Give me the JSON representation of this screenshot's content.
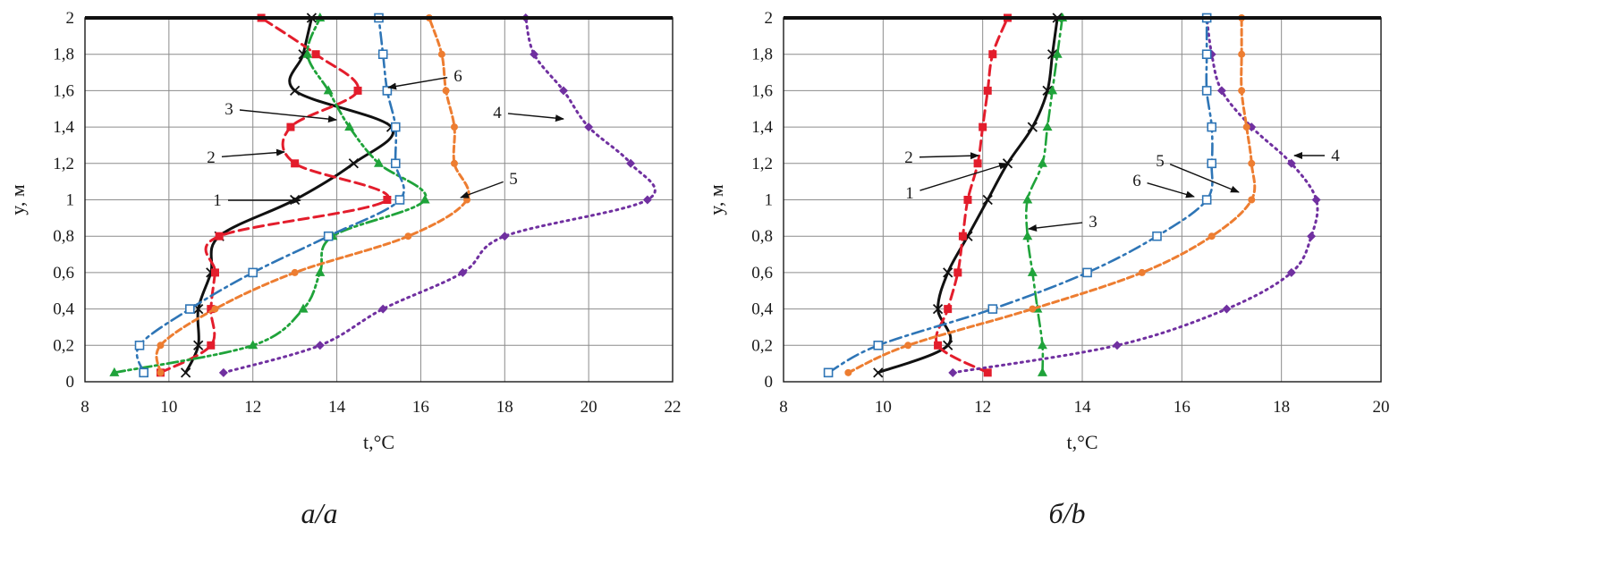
{
  "colors": {
    "1": "#111111",
    "2": "#e31d2c",
    "3": "#1fa33a",
    "4": "#7030a0",
    "5": "#ed7d31",
    "6": "#2e75b6"
  },
  "chart_data": [
    {
      "type": "line",
      "caption": "а/a",
      "xlabel": "t,°C",
      "ylabel": "y, м",
      "xlim": [
        8,
        22
      ],
      "ylim": [
        0,
        2
      ],
      "xticks": [
        "8",
        "10",
        "12",
        "14",
        "16",
        "18",
        "20",
        "22"
      ],
      "yticks": [
        "0",
        "0,2",
        "0,4",
        "0,6",
        "0,8",
        "1",
        "1,2",
        "1,4",
        "1,6",
        "1,8",
        "2"
      ],
      "grid": true,
      "series": [
        {
          "name": "1",
          "marker": "x",
          "dash": "solid",
          "points": [
            [
              10.4,
              0.05
            ],
            [
              10.7,
              0.2
            ],
            [
              10.7,
              0.4
            ],
            [
              11.0,
              0.6
            ],
            [
              11.2,
              0.8
            ],
            [
              13.0,
              1.0
            ],
            [
              14.4,
              1.2
            ],
            [
              15.3,
              1.4
            ],
            [
              13.0,
              1.6
            ],
            [
              13.2,
              1.8
            ],
            [
              13.4,
              2.0
            ]
          ]
        },
        {
          "name": "2",
          "marker": "square",
          "dash": "dash",
          "points": [
            [
              9.8,
              0.05
            ],
            [
              11.0,
              0.2
            ],
            [
              11.0,
              0.4
            ],
            [
              11.1,
              0.6
            ],
            [
              11.2,
              0.8
            ],
            [
              15.2,
              1.0
            ],
            [
              13.0,
              1.2
            ],
            [
              12.9,
              1.4
            ],
            [
              14.5,
              1.6
            ],
            [
              13.5,
              1.8
            ],
            [
              12.2,
              2.0
            ]
          ]
        },
        {
          "name": "3",
          "marker": "triangle",
          "dash": "dashdotdot",
          "points": [
            [
              8.7,
              0.05
            ],
            [
              12.0,
              0.2
            ],
            [
              13.2,
              0.4
            ],
            [
              13.6,
              0.6
            ],
            [
              13.9,
              0.8
            ],
            [
              16.1,
              1.0
            ],
            [
              15.0,
              1.2
            ],
            [
              14.3,
              1.4
            ],
            [
              13.8,
              1.6
            ],
            [
              13.3,
              1.8
            ],
            [
              13.6,
              2.0
            ]
          ]
        },
        {
          "name": "4",
          "marker": "diamond",
          "dash": "dot",
          "points": [
            [
              11.3,
              0.05
            ],
            [
              13.6,
              0.2
            ],
            [
              15.1,
              0.4
            ],
            [
              17.0,
              0.6
            ],
            [
              18.0,
              0.8
            ],
            [
              21.4,
              1.0
            ],
            [
              21.0,
              1.2
            ],
            [
              20.0,
              1.4
            ],
            [
              19.4,
              1.6
            ],
            [
              18.7,
              1.8
            ],
            [
              18.5,
              2.0
            ]
          ]
        },
        {
          "name": "5",
          "marker": "circle",
          "dash": "shortdash",
          "points": [
            [
              9.8,
              0.05
            ],
            [
              9.8,
              0.2
            ],
            [
              11.1,
              0.4
            ],
            [
              13.0,
              0.6
            ],
            [
              15.7,
              0.8
            ],
            [
              17.1,
              1.0
            ],
            [
              16.8,
              1.2
            ],
            [
              16.8,
              1.4
            ],
            [
              16.6,
              1.6
            ],
            [
              16.5,
              1.8
            ],
            [
              16.2,
              2.0
            ]
          ]
        },
        {
          "name": "6",
          "marker": "opensquare",
          "dash": "dashdot",
          "points": [
            [
              9.4,
              0.05
            ],
            [
              9.3,
              0.2
            ],
            [
              10.5,
              0.4
            ],
            [
              12.0,
              0.6
            ],
            [
              13.8,
              0.8
            ],
            [
              15.5,
              1.0
            ],
            [
              15.4,
              1.2
            ],
            [
              15.4,
              1.4
            ],
            [
              15.2,
              1.6
            ],
            [
              15.1,
              1.8
            ],
            [
              15.0,
              2.0
            ]
          ]
        }
      ],
      "annotations": [
        "1",
        "2",
        "3",
        "4",
        "5",
        "6"
      ]
    },
    {
      "type": "line",
      "caption": "б/b",
      "xlabel": "t,°C",
      "ylabel": "y, м",
      "xlim": [
        8,
        20
      ],
      "ylim": [
        0,
        2
      ],
      "xticks": [
        "8",
        "10",
        "12",
        "14",
        "16",
        "18",
        "20"
      ],
      "yticks": [
        "0",
        "0,2",
        "0,4",
        "0,6",
        "0,8",
        "1",
        "1,2",
        "1,4",
        "1,6",
        "1,8",
        "2"
      ],
      "grid": true,
      "series": [
        {
          "name": "1",
          "marker": "x",
          "dash": "solid",
          "points": [
            [
              9.9,
              0.05
            ],
            [
              11.3,
              0.2
            ],
            [
              11.1,
              0.4
            ],
            [
              11.3,
              0.6
            ],
            [
              11.7,
              0.8
            ],
            [
              12.1,
              1.0
            ],
            [
              12.5,
              1.2
            ],
            [
              13.0,
              1.4
            ],
            [
              13.3,
              1.6
            ],
            [
              13.4,
              1.8
            ],
            [
              13.5,
              2.0
            ]
          ]
        },
        {
          "name": "2",
          "marker": "square",
          "dash": "dash",
          "points": [
            [
              12.1,
              0.05
            ],
            [
              11.1,
              0.2
            ],
            [
              11.3,
              0.4
            ],
            [
              11.5,
              0.6
            ],
            [
              11.6,
              0.8
            ],
            [
              11.7,
              1.0
            ],
            [
              11.9,
              1.2
            ],
            [
              12.0,
              1.4
            ],
            [
              12.1,
              1.6
            ],
            [
              12.2,
              1.8
            ],
            [
              12.5,
              2.0
            ]
          ]
        },
        {
          "name": "3",
          "marker": "triangle",
          "dash": "dashdot",
          "points": [
            [
              13.2,
              0.05
            ],
            [
              13.2,
              0.2
            ],
            [
              13.1,
              0.4
            ],
            [
              13.0,
              0.6
            ],
            [
              12.9,
              0.8
            ],
            [
              12.9,
              1.0
            ],
            [
              13.2,
              1.2
            ],
            [
              13.3,
              1.4
            ],
            [
              13.4,
              1.6
            ],
            [
              13.5,
              1.8
            ],
            [
              13.6,
              2.0
            ]
          ]
        },
        {
          "name": "4",
          "marker": "diamond",
          "dash": "dot",
          "points": [
            [
              11.4,
              0.05
            ],
            [
              14.7,
              0.2
            ],
            [
              16.9,
              0.4
            ],
            [
              18.2,
              0.6
            ],
            [
              18.6,
              0.8
            ],
            [
              18.7,
              1.0
            ],
            [
              18.2,
              1.2
            ],
            [
              17.4,
              1.4
            ],
            [
              16.8,
              1.6
            ],
            [
              16.6,
              1.8
            ],
            [
              16.5,
              2.0
            ]
          ]
        },
        {
          "name": "5",
          "marker": "circle",
          "dash": "shortdash",
          "points": [
            [
              9.3,
              0.05
            ],
            [
              10.5,
              0.2
            ],
            [
              13.0,
              0.4
            ],
            [
              15.2,
              0.6
            ],
            [
              16.6,
              0.8
            ],
            [
              17.4,
              1.0
            ],
            [
              17.4,
              1.2
            ],
            [
              17.3,
              1.4
            ],
            [
              17.2,
              1.6
            ],
            [
              17.2,
              1.8
            ],
            [
              17.2,
              2.0
            ]
          ]
        },
        {
          "name": "6",
          "marker": "opensquare",
          "dash": "dashdot",
          "points": [
            [
              8.9,
              0.05
            ],
            [
              9.9,
              0.2
            ],
            [
              12.2,
              0.4
            ],
            [
              14.1,
              0.6
            ],
            [
              15.5,
              0.8
            ],
            [
              16.5,
              1.0
            ],
            [
              16.6,
              1.2
            ],
            [
              16.6,
              1.4
            ],
            [
              16.5,
              1.6
            ],
            [
              16.5,
              1.8
            ],
            [
              16.5,
              2.0
            ]
          ]
        }
      ],
      "annotations": [
        "1",
        "2",
        "3",
        "4",
        "5",
        "6"
      ]
    }
  ]
}
